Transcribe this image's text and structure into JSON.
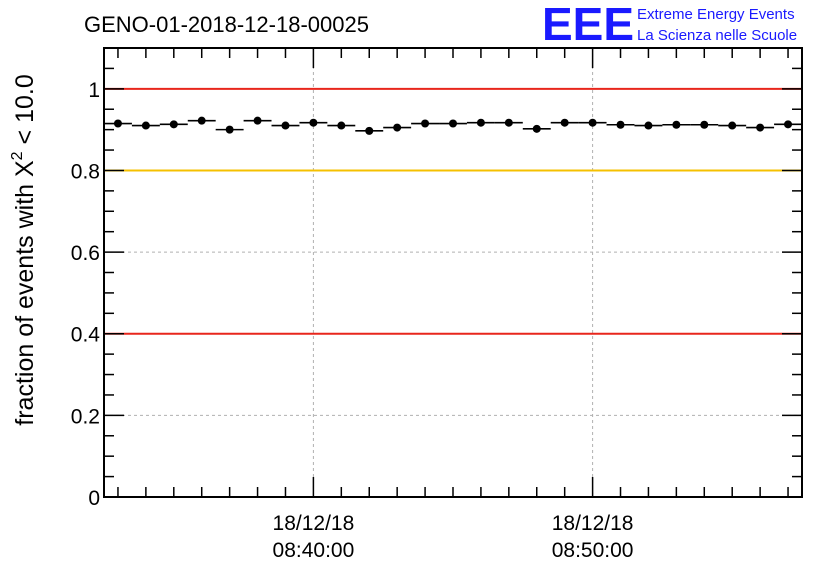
{
  "chart_data": {
    "type": "scatter",
    "title": "GENO-01-2018-12-18-00025",
    "ylabel_prefix": "fraction of events with ",
    "ylabel_symbol": "X",
    "ylabel_exponent": "2",
    "ylabel_suffix": " < 10.0",
    "xlabel": "",
    "ylim": [
      0,
      1.1
    ],
    "y_ticks": [
      {
        "value": 0,
        "label": "0"
      },
      {
        "value": 0.2,
        "label": "0.2"
      },
      {
        "value": 0.4,
        "label": "0.4"
      },
      {
        "value": 0.6,
        "label": "0.6"
      },
      {
        "value": 0.8,
        "label": "0.8"
      },
      {
        "value": 1,
        "label": "1"
      }
    ],
    "xlim_minutes": [
      0,
      25
    ],
    "x_ticks": [
      {
        "minute": 7.5,
        "date": "18/12/18",
        "time": "08:40:00"
      },
      {
        "minute": 17.5,
        "date": "18/12/18",
        "time": "08:50:00"
      }
    ],
    "x_start_time": "08:32:30",
    "bin_width_minutes": 1,
    "x_centers": [
      0.5,
      1.5,
      2.5,
      3.5,
      4.5,
      5.5,
      6.5,
      7.5,
      8.5,
      9.5,
      10.5,
      11.5,
      12.5,
      13.5,
      14.5,
      15.5,
      16.5,
      17.5,
      18.5,
      19.5,
      20.5,
      21.5,
      22.5,
      23.5,
      24.5
    ],
    "values": [
      0.915,
      0.91,
      0.913,
      0.922,
      0.9,
      0.922,
      0.91,
      0.917,
      0.91,
      0.897,
      0.905,
      0.915,
      0.915,
      0.917,
      0.917,
      0.902,
      0.917,
      0.917,
      0.912,
      0.91,
      0.912,
      0.912,
      0.91,
      0.905,
      0.913
    ],
    "reference_lines": [
      {
        "y": 1.0,
        "color": "#e8261c"
      },
      {
        "y": 0.8,
        "color": "#f5c000"
      },
      {
        "y": 0.4,
        "color": "#e8261c"
      }
    ],
    "grid": true,
    "marker_color": "#000000"
  },
  "logo": {
    "mark": "EEE",
    "line1": "Extreme Energy Events",
    "line2": "La Scienza nelle Scuole",
    "color": "#1a1aff"
  }
}
